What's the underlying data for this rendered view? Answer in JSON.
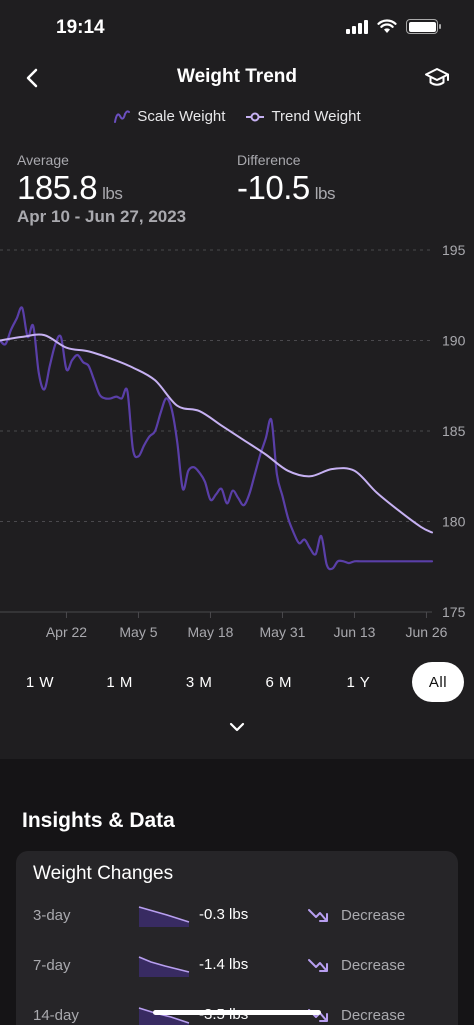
{
  "status_bar": {
    "time": "19:14"
  },
  "nav": {
    "title": "Weight Trend"
  },
  "legend": {
    "scale": "Scale Weight",
    "trend": "Trend Weight"
  },
  "stats": {
    "average": {
      "label": "Average",
      "value": "185.8",
      "unit": "lbs",
      "range": "Apr 10 - Jun 27, 2023"
    },
    "difference": {
      "label": "Difference",
      "value": "-10.5",
      "unit": "lbs"
    }
  },
  "colors": {
    "scale_line": "#5a3fa8",
    "trend_line": "#c6b1f2",
    "accent": "#9277dd",
    "grid": "#4a494d"
  },
  "chart_data": {
    "type": "line",
    "ylim": [
      175,
      195
    ],
    "y_ticks": [
      "195",
      "190",
      "185",
      "180",
      "175"
    ],
    "x_tick_labels": [
      "Apr 22",
      "May 5",
      "May 18",
      "May 31",
      "Jun 13",
      "Jun 26"
    ],
    "x_tick_days": [
      12,
      25,
      38,
      51,
      64,
      77
    ],
    "x_range_days": [
      0,
      78
    ],
    "series": [
      {
        "name": "Scale Weight",
        "x": [
          0,
          1,
          2,
          3,
          4,
          5,
          6,
          7,
          8,
          9,
          10,
          11,
          12,
          13,
          14,
          15,
          16,
          17,
          18,
          19,
          20,
          21,
          22,
          23,
          24,
          25,
          26,
          27,
          28,
          29,
          30,
          31,
          32,
          33,
          34,
          35,
          36,
          37,
          38,
          39,
          40,
          41,
          42,
          43,
          44,
          45,
          46,
          47,
          48,
          49,
          50,
          51,
          52,
          53,
          54,
          55,
          56,
          57,
          58,
          59,
          60,
          61,
          62,
          63,
          64,
          65,
          66,
          67,
          68,
          69,
          70,
          71,
          72,
          73,
          74,
          75,
          76,
          77,
          78
        ],
        "y": [
          190.0,
          189.8,
          190.6,
          191.2,
          191.8,
          190.2,
          190.8,
          188.2,
          187.3,
          188.6,
          189.8,
          190.2,
          188.4,
          188.9,
          189.2,
          188.8,
          188.6,
          187.8,
          187.0,
          186.8,
          186.8,
          186.9,
          186.8,
          187.2,
          184.0,
          183.6,
          184.2,
          184.7,
          185.0,
          186.0,
          186.8,
          186.2,
          184.4,
          181.8,
          182.8,
          183.0,
          182.7,
          182.2,
          181.2,
          181.5,
          181.8,
          181.0,
          181.7,
          181.3,
          180.9,
          181.5,
          182.6,
          183.7,
          184.6,
          185.6,
          182.6,
          181.4,
          180.2,
          179.4,
          178.8,
          179.0,
          178.5,
          178.2,
          179.2,
          177.6,
          177.4,
          177.8,
          177.8,
          177.7,
          177.8,
          177.8,
          177.8,
          177.8,
          177.8,
          177.8,
          177.8,
          177.8,
          177.8,
          177.8,
          177.8,
          177.8,
          177.8,
          177.8,
          177.8
        ]
      },
      {
        "name": "Trend Weight",
        "x": [
          0,
          4,
          8,
          12,
          16,
          20,
          24,
          28,
          32,
          36,
          40,
          44,
          48,
          52,
          56,
          60,
          64,
          68,
          72,
          76,
          78
        ],
        "y": [
          190.0,
          190.2,
          190.3,
          189.6,
          189.4,
          189.0,
          188.5,
          187.8,
          186.4,
          186.1,
          185.3,
          184.5,
          183.7,
          182.8,
          182.5,
          182.9,
          182.8,
          181.6,
          180.6,
          179.7,
          179.4
        ]
      }
    ]
  },
  "ranges": [
    "1 W",
    "1 M",
    "3 M",
    "6 M",
    "1 Y",
    "All"
  ],
  "active_range": "All",
  "insights": {
    "title": "Insights & Data",
    "card_title": "Weight Changes",
    "rows": [
      {
        "period": "3-day",
        "value": "-0.3 lbs",
        "trend": "Decrease"
      },
      {
        "period": "7-day",
        "value": "-1.4 lbs",
        "trend": "Decrease"
      },
      {
        "period": "14-day",
        "value": "-3.5 lbs",
        "trend": "Decrease"
      }
    ]
  }
}
